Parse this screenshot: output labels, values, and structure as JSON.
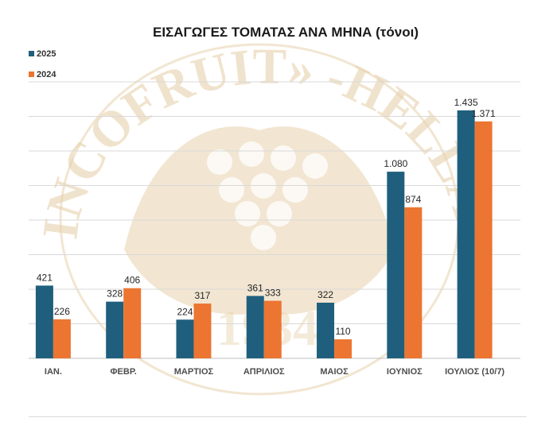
{
  "chart_data": {
    "type": "bar",
    "title": "ΕΙΣΑΓΩΓΕΣ ΤΟΜΑΤΑΣ ΑΝΑ ΜΗΝΑ (τόνοι)",
    "xlabel": "",
    "ylabel": "",
    "categories": [
      "ΙΑΝ.",
      "ΦΕΒΡ.",
      "ΜΑΡΤΙΟΣ",
      "ΑΠΡΙΛΙΟΣ",
      "ΜΑΙΟΣ",
      "ΙΟΥΝΙΟΣ",
      "ΙΟΥΛΙΟΣ (10/7)"
    ],
    "series": [
      {
        "name": "2025",
        "color": "#1f5f7d",
        "values": [
          421,
          328,
          224,
          361,
          322,
          1080,
          1435
        ],
        "labels": [
          "421",
          "328",
          "224",
          "361",
          "322",
          "1.080",
          "1.435"
        ]
      },
      {
        "name": "2024",
        "color": "#ec7531",
        "values": [
          226,
          406,
          317,
          333,
          110,
          874,
          1371
        ],
        "labels": [
          "226",
          "406",
          "317",
          "333",
          "110",
          "874",
          "1.371"
        ]
      }
    ],
    "ylim": [
      0,
      1600
    ],
    "grid": true,
    "legend": "top-left"
  },
  "watermark": {
    "text": "«INCOFRUIT» -HELLAS-",
    "year": "1934",
    "color": "#e7d2ad"
  }
}
